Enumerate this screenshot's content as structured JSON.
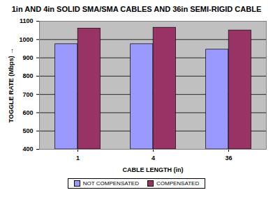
{
  "chart_data": {
    "type": "bar",
    "title": "1in AND 4in SOLID SMA/SMA CABLES AND 36in SEMI-RIGID CABLE",
    "x_label": "CABLE LENGTH (in)",
    "y_label": "TOGGLE RATE (Mbps)",
    "categories": [
      "1",
      "4",
      "36"
    ],
    "series": [
      {
        "name": "NOT COMPENSATED",
        "color": "#9999ff",
        "values": [
          975,
          975,
          945
        ]
      },
      {
        "name": "COMPENSATED",
        "color": "#993366",
        "values": [
          1060,
          1065,
          1050
        ]
      }
    ],
    "ylim": [
      400,
      1100
    ],
    "yticks": [
      400,
      500,
      600,
      700,
      800,
      900,
      1000,
      1100
    ],
    "grid": true,
    "legend": "bottom"
  }
}
